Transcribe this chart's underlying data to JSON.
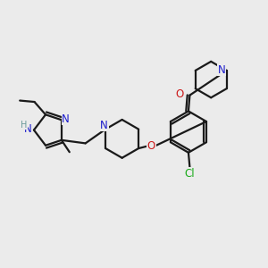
{
  "bg_color": "#ebebeb",
  "bond_color": "#1a1a1a",
  "N_color": "#1a1acc",
  "O_color": "#cc1a1a",
  "Cl_color": "#1aaa1a",
  "H_color": "#6a9a9a",
  "lw": 1.6,
  "fs": 8.5,
  "dpi": 100,
  "figsize": [
    3.0,
    3.0
  ],
  "xlim": [
    0,
    10
  ],
  "ylim": [
    0,
    10
  ]
}
